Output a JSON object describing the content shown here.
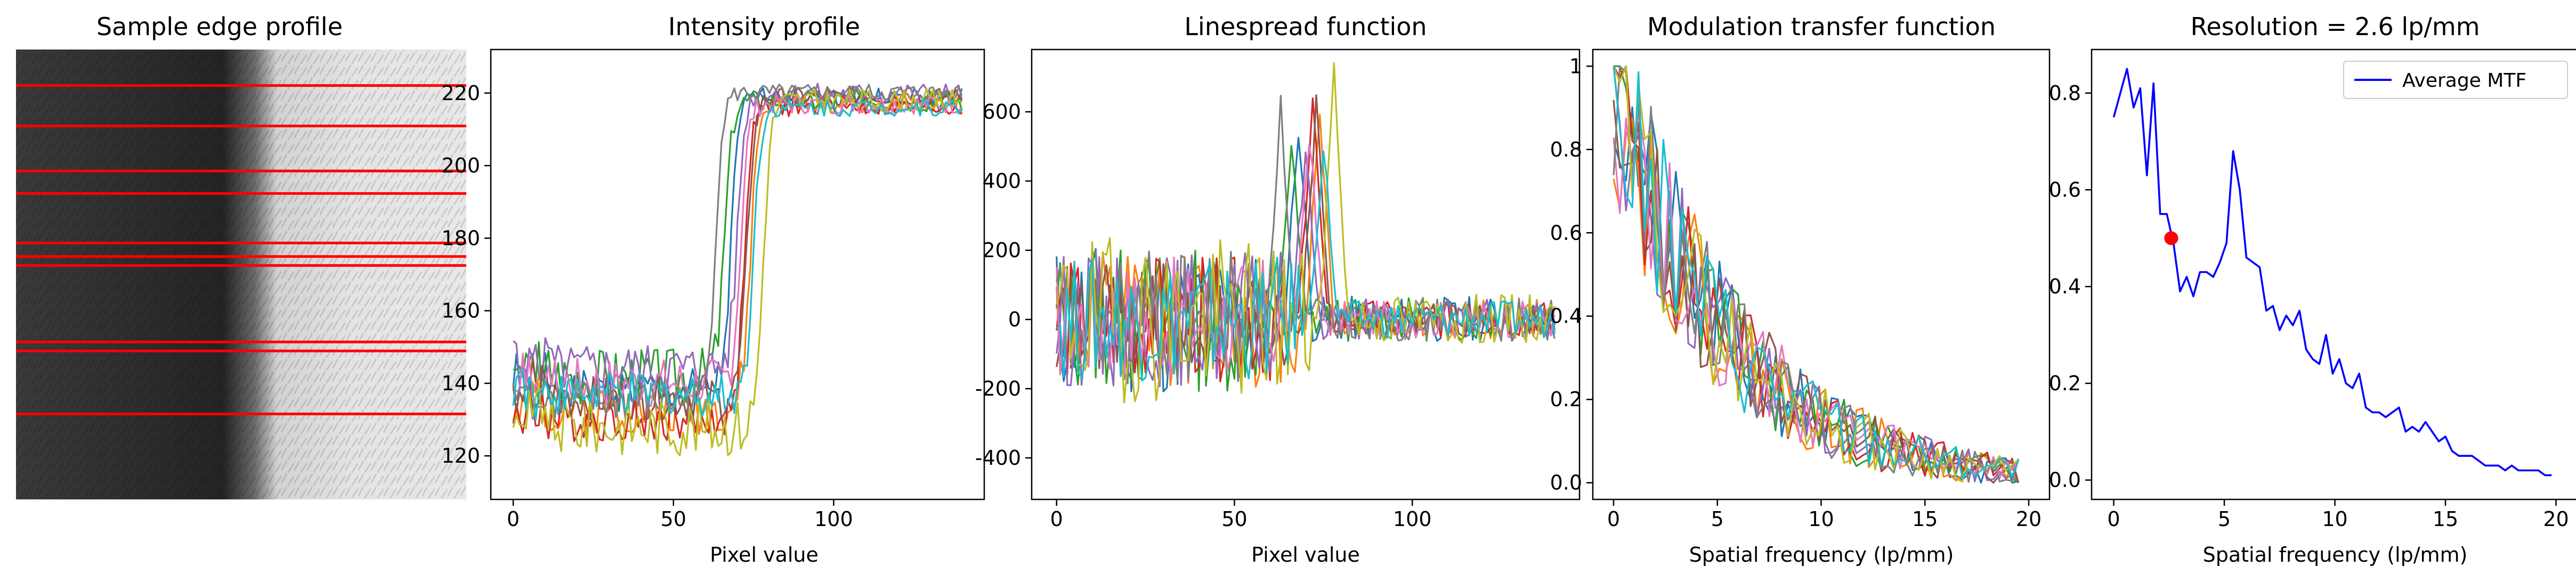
{
  "chart_data": [
    {
      "type": "image",
      "title": "Sample edge profile",
      "image": {
        "edge_fraction": 0.55,
        "dark_color": "#2b2b2b",
        "light_color": "#e6e6e6"
      },
      "sample_lines": {
        "color": "#ff0000",
        "rows_fraction": [
          0.08,
          0.17,
          0.27,
          0.32,
          0.43,
          0.46,
          0.48,
          0.65,
          0.67,
          0.81
        ]
      }
    },
    {
      "type": "line",
      "title": "Intensity profile",
      "xlabel": "Pixel value",
      "ylabel": "",
      "xlim": [
        -7,
        147
      ],
      "ylim": [
        108,
        232
      ],
      "xticks": [
        0,
        50,
        100
      ],
      "yticks": [
        120,
        140,
        160,
        180,
        200,
        220
      ],
      "series": [
        {
          "color": "#1f77b4",
          "edge": 68,
          "low": 138,
          "high": 219,
          "amp": 6,
          "seed": 1
        },
        {
          "color": "#ff7f0e",
          "edge": 74,
          "low": 133,
          "high": 217,
          "amp": 7,
          "seed": 2
        },
        {
          "color": "#2ca02c",
          "edge": 66,
          "low": 142,
          "high": 218,
          "amp": 8,
          "seed": 3
        },
        {
          "color": "#d62728",
          "edge": 72,
          "low": 130,
          "high": 216,
          "amp": 6,
          "seed": 4
        },
        {
          "color": "#9467bd",
          "edge": 70,
          "low": 144,
          "high": 220,
          "amp": 7,
          "seed": 5
        },
        {
          "color": "#8c564b",
          "edge": 73,
          "low": 136,
          "high": 219,
          "amp": 6,
          "seed": 6
        },
        {
          "color": "#e377c2",
          "edge": 71,
          "low": 140,
          "high": 217,
          "amp": 7,
          "seed": 7
        },
        {
          "color": "#7f7f7f",
          "edge": 63,
          "low": 135,
          "high": 220,
          "amp": 6,
          "seed": 8
        },
        {
          "color": "#bcbd22",
          "edge": 78,
          "low": 128,
          "high": 218,
          "amp": 8,
          "seed": 9
        },
        {
          "color": "#17becf",
          "edge": 75,
          "low": 137,
          "high": 216,
          "amp": 6,
          "seed": 10
        }
      ]
    },
    {
      "type": "line",
      "title": "Linespread function",
      "xlabel": "Pixel value",
      "ylabel": "",
      "xlim": [
        -7,
        147
      ],
      "ylim": [
        -520,
        780
      ],
      "xticks": [
        0,
        50,
        100
      ],
      "yticks": [
        -400,
        -200,
        0,
        200,
        400,
        600
      ],
      "series": [
        {
          "color": "#1f77b4",
          "peak_x": 68,
          "peak": 560,
          "amp": 150,
          "seed": 11
        },
        {
          "color": "#ff7f0e",
          "peak_x": 74,
          "peak": 600,
          "amp": 130,
          "seed": 12
        },
        {
          "color": "#2ca02c",
          "peak_x": 66,
          "peak": 500,
          "amp": 140,
          "seed": 13
        },
        {
          "color": "#d62728",
          "peak_x": 72,
          "peak": 640,
          "amp": 120,
          "seed": 14
        },
        {
          "color": "#9467bd",
          "peak_x": 70,
          "peak": 480,
          "amp": 130,
          "seed": 15
        },
        {
          "color": "#8c564b",
          "peak_x": 73,
          "peak": 620,
          "amp": 110,
          "seed": 16
        },
        {
          "color": "#e377c2",
          "peak_x": 71,
          "peak": 540,
          "amp": 120,
          "seed": 17
        },
        {
          "color": "#7f7f7f",
          "peak_x": 63,
          "peak": 610,
          "amp": 140,
          "seed": 18
        },
        {
          "color": "#bcbd22",
          "peak_x": 78,
          "peak": 720,
          "amp": 160,
          "seed": 19
        },
        {
          "color": "#17becf",
          "peak_x": 75,
          "peak": 500,
          "amp": 120,
          "seed": 20
        }
      ]
    },
    {
      "type": "line",
      "title": "Modulation transfer function",
      "xlabel": "Spatial frequency (lp/mm)",
      "ylabel": "",
      "xlim": [
        -1,
        21
      ],
      "ylim": [
        -0.04,
        1.04
      ],
      "xticks": [
        0,
        5,
        10,
        15,
        20
      ],
      "yticks": [
        0.0,
        0.2,
        0.4,
        0.6,
        0.8,
        1.0
      ],
      "series": [
        {
          "color": "#1f77b4",
          "seed": 21
        },
        {
          "color": "#ff7f0e",
          "seed": 22
        },
        {
          "color": "#2ca02c",
          "seed": 23
        },
        {
          "color": "#d62728",
          "seed": 24
        },
        {
          "color": "#9467bd",
          "seed": 25
        },
        {
          "color": "#8c564b",
          "seed": 26
        },
        {
          "color": "#e377c2",
          "seed": 27
        },
        {
          "color": "#7f7f7f",
          "seed": 28
        },
        {
          "color": "#bcbd22",
          "seed": 29
        },
        {
          "color": "#17becf",
          "seed": 30
        }
      ]
    },
    {
      "type": "line",
      "title": "Resolution = 2.6 lp/mm",
      "xlabel": "Spatial frequency (lp/mm)",
      "ylabel": "",
      "xlim": [
        -1,
        21
      ],
      "ylim": [
        -0.04,
        0.89
      ],
      "xticks": [
        0,
        5,
        10,
        15,
        20
      ],
      "yticks": [
        0.0,
        0.2,
        0.4,
        0.6,
        0.8
      ],
      "legend": {
        "label": "Average MTF",
        "position": "upper right"
      },
      "series": [
        {
          "name": "Average MTF",
          "color": "#0000ff",
          "x": [
            0,
            0.3,
            0.6,
            0.9,
            1.2,
            1.5,
            1.8,
            2.1,
            2.4,
            2.7,
            3.0,
            3.3,
            3.6,
            3.9,
            4.2,
            4.5,
            4.8,
            5.1,
            5.4,
            5.7,
            6.0,
            6.3,
            6.6,
            6.9,
            7.2,
            7.5,
            7.8,
            8.1,
            8.4,
            8.7,
            9.0,
            9.3,
            9.6,
            9.9,
            10.2,
            10.5,
            10.8,
            11.1,
            11.4,
            11.7,
            12.0,
            12.3,
            12.6,
            12.9,
            13.2,
            13.5,
            13.8,
            14.1,
            14.4,
            14.7,
            15.0,
            15.3,
            15.6,
            15.9,
            16.2,
            16.5,
            16.8,
            17.1,
            17.4,
            17.7,
            18.0,
            18.3,
            18.6,
            18.9,
            19.2,
            19.5,
            19.8
          ],
          "y": [
            0.75,
            0.8,
            0.85,
            0.77,
            0.81,
            0.63,
            0.82,
            0.55,
            0.55,
            0.49,
            0.39,
            0.42,
            0.38,
            0.43,
            0.43,
            0.42,
            0.45,
            0.49,
            0.68,
            0.6,
            0.46,
            0.45,
            0.44,
            0.35,
            0.36,
            0.31,
            0.34,
            0.32,
            0.35,
            0.27,
            0.25,
            0.24,
            0.3,
            0.22,
            0.25,
            0.2,
            0.19,
            0.22,
            0.15,
            0.14,
            0.14,
            0.13,
            0.14,
            0.15,
            0.1,
            0.11,
            0.1,
            0.12,
            0.1,
            0.08,
            0.09,
            0.06,
            0.05,
            0.05,
            0.05,
            0.04,
            0.03,
            0.03,
            0.03,
            0.02,
            0.03,
            0.02,
            0.02,
            0.02,
            0.02,
            0.01,
            0.01
          ]
        }
      ],
      "marker": {
        "x": 2.6,
        "y": 0.5,
        "color": "#ff0000"
      }
    }
  ]
}
